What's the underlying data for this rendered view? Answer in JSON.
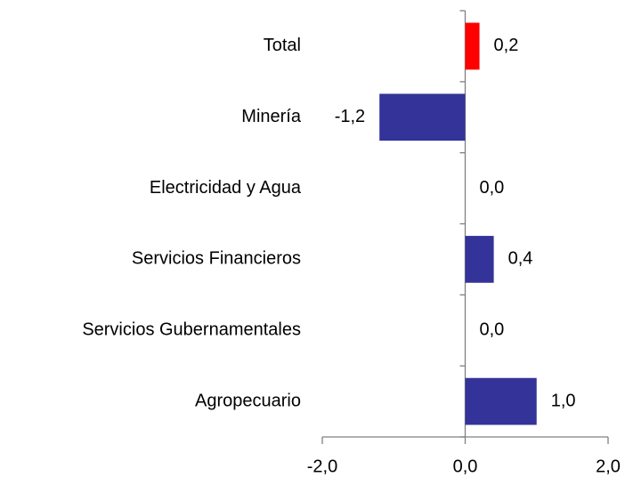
{
  "chart_data": {
    "type": "bar",
    "orientation": "horizontal",
    "categories": [
      "Total",
      "Minería",
      "Electricidad y Agua",
      "Servicios Financieros",
      "Servicios Gubernamentales",
      "Agropecuario"
    ],
    "values": [
      0.2,
      -1.2,
      0.0,
      0.4,
      0.0,
      1.0
    ],
    "value_labels": [
      "0,2",
      "-1,2",
      "0,0",
      "0,4",
      "0,0",
      "1,0"
    ],
    "colors": [
      "#ff0000",
      "#333399",
      "#333399",
      "#333399",
      "#333399",
      "#333399"
    ],
    "xlim": [
      -2.0,
      2.0
    ],
    "xticks": [
      {
        "value": -2.0,
        "label": "-2,0"
      },
      {
        "value": 0.0,
        "label": "0,0"
      },
      {
        "value": 2.0,
        "label": "2,0"
      }
    ]
  }
}
